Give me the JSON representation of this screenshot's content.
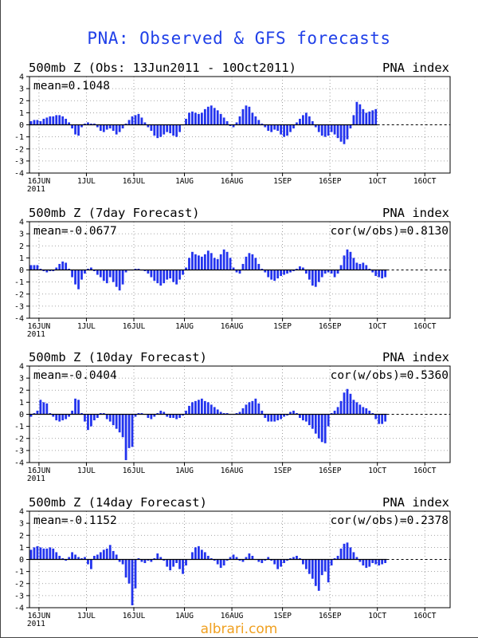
{
  "title": "PNA: Observed & GFS forecasts",
  "watermark": "albrari.com",
  "colors": {
    "bar": "#2233ee",
    "title": "#2040e8",
    "grid": "#888888",
    "watermark": "#f0a020"
  },
  "chart_data": [
    {
      "type": "bar",
      "title": "500mb Z (Obs: 13Jun2011 - 10Oct2011)",
      "right_title": "PNA index",
      "stat_left": "mean=0.1048",
      "stat_right": "",
      "ylim": [
        -4,
        4
      ],
      "yticks": [
        "4",
        "3",
        "2",
        "1",
        "0",
        "-1",
        "-2",
        "-3",
        "-4"
      ],
      "xticks": [
        "16JUN",
        "1JUL",
        "16JUL",
        "1AUG",
        "16AUG",
        "1SEP",
        "16SEP",
        "1OCT",
        "16OCT"
      ],
      "xtick_sub": "2011",
      "grid": true,
      "values": [
        0.3,
        0.4,
        0.4,
        0.3,
        0.5,
        0.6,
        0.7,
        0.7,
        0.8,
        0.8,
        0.7,
        0.5,
        0.2,
        -0.3,
        -0.8,
        -0.9,
        -0.2,
        0.1,
        0.2,
        0.1,
        0.1,
        -0.2,
        -0.5,
        -0.6,
        -0.4,
        -0.3,
        -0.5,
        -0.8,
        -0.6,
        -0.3,
        0.1,
        0.4,
        0.7,
        0.8,
        0.9,
        0.6,
        0.2,
        -0.2,
        -0.5,
        -0.9,
        -1.1,
        -1.0,
        -0.8,
        -0.6,
        -0.7,
        -0.9,
        -1.0,
        -0.6,
        0.0,
        0.5,
        1.0,
        1.1,
        1.0,
        0.9,
        1.0,
        1.3,
        1.5,
        1.6,
        1.4,
        1.2,
        0.9,
        0.6,
        0.3,
        -0.1,
        -0.2,
        0.2,
        0.7,
        1.3,
        1.6,
        1.5,
        1.0,
        0.7,
        0.4,
        0.1,
        -0.2,
        -0.5,
        -0.6,
        -0.4,
        -0.5,
        -0.8,
        -1.0,
        -0.9,
        -0.6,
        -0.3,
        0.2,
        0.5,
        0.8,
        1.0,
        0.7,
        0.3,
        -0.2,
        -0.6,
        -0.9,
        -1.0,
        -0.9,
        -0.6,
        -0.8,
        -1.1,
        -1.4,
        -1.6,
        -1.2,
        -0.3,
        0.8,
        1.9,
        1.7,
        1.3,
        1.0,
        1.1,
        1.2,
        1.3
      ]
    },
    {
      "type": "bar",
      "title": "500mb Z (7day Forecast)",
      "right_title": "PNA index",
      "stat_left": "mean=-0.0677",
      "stat_right": "cor(w/obs)=0.8130",
      "ylim": [
        -4,
        4
      ],
      "yticks": [
        "4",
        "3",
        "2",
        "1",
        "0",
        "-1",
        "-2",
        "-3",
        "-4"
      ],
      "xticks": [
        "16JUN",
        "1JUL",
        "16JUL",
        "1AUG",
        "16AUG",
        "1SEP",
        "16SEP",
        "1OCT",
        "16OCT"
      ],
      "xtick_sub": "2011",
      "grid": true,
      "values": [
        0.4,
        0.4,
        0.4,
        0.1,
        -0.1,
        -0.2,
        -0.1,
        -0.1,
        0.2,
        0.5,
        0.7,
        0.6,
        0.1,
        -0.6,
        -1.2,
        -1.6,
        -0.8,
        -0.3,
        0.1,
        0.2,
        -0.1,
        -0.4,
        -0.6,
        -0.9,
        -1.1,
        -0.6,
        -1.0,
        -1.4,
        -1.7,
        -1.2,
        -0.2,
        0.0,
        0.0,
        0.1,
        0.1,
        0.0,
        -0.1,
        -0.3,
        -0.6,
        -0.9,
        -1.1,
        -1.3,
        -1.1,
        -0.8,
        -0.7,
        -1.0,
        -1.2,
        -0.8,
        -0.4,
        0.2,
        1.0,
        1.5,
        1.3,
        1.2,
        1.1,
        1.3,
        1.6,
        1.4,
        1.0,
        0.9,
        1.3,
        1.7,
        1.5,
        1.0,
        0.2,
        -0.2,
        -0.3,
        0.5,
        1.1,
        1.4,
        1.3,
        1.0,
        0.5,
        0.1,
        -0.2,
        -0.6,
        -0.8,
        -0.9,
        -0.7,
        -0.5,
        -0.4,
        -0.3,
        -0.2,
        -0.1,
        0.1,
        0.3,
        0.2,
        -0.3,
        -0.8,
        -1.3,
        -1.4,
        -1.0,
        -0.6,
        -0.3,
        -0.2,
        -0.3,
        -0.6,
        -0.3,
        0.4,
        1.2,
        1.7,
        1.5,
        1.0,
        0.6,
        0.5,
        0.6,
        0.4,
        0.1,
        -0.2,
        -0.5,
        -0.6,
        -0.7,
        -0.6
      ]
    },
    {
      "type": "bar",
      "title": "500mb Z (10day Forecast)",
      "right_title": "PNA index",
      "stat_left": "mean=-0.0404",
      "stat_right": "cor(w/obs)=0.5360",
      "ylim": [
        -4,
        4
      ],
      "yticks": [
        "4",
        "3",
        "2",
        "1",
        "0",
        "-1",
        "-2",
        "-3",
        "-4"
      ],
      "xticks": [
        "16JUN",
        "1JUL",
        "16JUL",
        "1AUG",
        "16AUG",
        "1SEP",
        "16SEP",
        "1OCT",
        "16OCT"
      ],
      "xtick_sub": "2011",
      "grid": true,
      "values": [
        -0.2,
        0.1,
        0.3,
        1.2,
        1.0,
        0.9,
        0.1,
        -0.2,
        -0.5,
        -0.6,
        -0.5,
        -0.4,
        -0.2,
        0.3,
        1.3,
        1.2,
        0.1,
        -0.6,
        -1.3,
        -1.0,
        -0.5,
        -0.3,
        0.1,
        0.1,
        -0.4,
        -0.6,
        -0.9,
        -1.2,
        -1.5,
        -1.9,
        -3.8,
        -2.8,
        -2.7,
        -0.2,
        0.1,
        0.1,
        0.0,
        -0.3,
        -0.4,
        -0.2,
        0.1,
        0.3,
        0.2,
        -0.2,
        -0.3,
        -0.3,
        -0.4,
        -0.3,
        -0.1,
        0.3,
        0.7,
        1.0,
        1.1,
        1.2,
        1.3,
        1.1,
        1.0,
        0.8,
        0.6,
        0.4,
        0.2,
        0.1,
        0.1,
        0.0,
        0.0,
        0.1,
        0.2,
        0.5,
        0.8,
        1.0,
        1.1,
        1.3,
        0.9,
        0.3,
        -0.3,
        -0.6,
        -0.6,
        -0.6,
        -0.5,
        -0.4,
        -0.2,
        -0.1,
        0.2,
        0.3,
        0.1,
        -0.3,
        -0.5,
        -0.6,
        -0.9,
        -1.2,
        -1.6,
        -2.0,
        -2.3,
        -2.4,
        -1.0,
        0.1,
        0.3,
        0.6,
        1.1,
        1.8,
        2.1,
        1.7,
        1.2,
        1.0,
        0.8,
        0.6,
        0.5,
        0.3,
        0.1,
        -0.4,
        -0.8,
        -0.8,
        -0.6
      ]
    },
    {
      "type": "bar",
      "title": "500mb Z (14day Forecast)",
      "right_title": "PNA index",
      "stat_left": "mean=-0.1152",
      "stat_right": "cor(w/obs)=0.2378",
      "ylim": [
        -4,
        4
      ],
      "yticks": [
        "4",
        "3",
        "2",
        "1",
        "0",
        "-1",
        "-2",
        "-3",
        "-4"
      ],
      "xticks": [
        "16JUN",
        "1JUL",
        "16JUL",
        "1AUG",
        "16AUG",
        "1SEP",
        "16SEP",
        "1OCT",
        "16OCT"
      ],
      "xtick_sub": "2011",
      "grid": true,
      "values": [
        0.8,
        1.0,
        1.1,
        1.0,
        0.9,
        0.9,
        1.0,
        0.9,
        0.6,
        0.3,
        0.1,
        -0.1,
        0.2,
        0.6,
        0.4,
        0.2,
        0.1,
        0.2,
        -0.4,
        -0.8,
        0.3,
        0.4,
        0.6,
        0.8,
        0.9,
        1.2,
        0.7,
        0.4,
        -0.2,
        -0.4,
        -1.5,
        -2.0,
        -3.8,
        -2.4,
        0.1,
        -0.2,
        -0.3,
        -0.1,
        -0.2,
        0.1,
        0.5,
        0.2,
        -0.1,
        -0.6,
        -0.9,
        -0.6,
        -0.3,
        -0.8,
        -1.2,
        -0.5,
        0.0,
        0.6,
        1.0,
        1.1,
        0.8,
        0.6,
        0.3,
        0.1,
        -0.1,
        -0.4,
        -0.7,
        -0.5,
        -0.1,
        0.2,
        0.4,
        0.2,
        -0.1,
        -0.2,
        0.2,
        0.5,
        0.3,
        0.0,
        -0.2,
        -0.3,
        -0.1,
        0.2,
        -0.1,
        -0.4,
        -0.8,
        -0.6,
        -0.3,
        -0.1,
        0.1,
        0.2,
        0.3,
        0.1,
        -0.4,
        -0.8,
        -1.2,
        -1.6,
        -2.2,
        -2.6,
        -1.3,
        -1.0,
        -1.9,
        -0.5,
        0.1,
        0.3,
        0.9,
        1.3,
        1.4,
        1.0,
        0.6,
        0.2,
        -0.2,
        -0.5,
        -0.7,
        -0.6,
        -0.3,
        -0.4,
        -0.5,
        -0.4,
        -0.3
      ]
    }
  ]
}
